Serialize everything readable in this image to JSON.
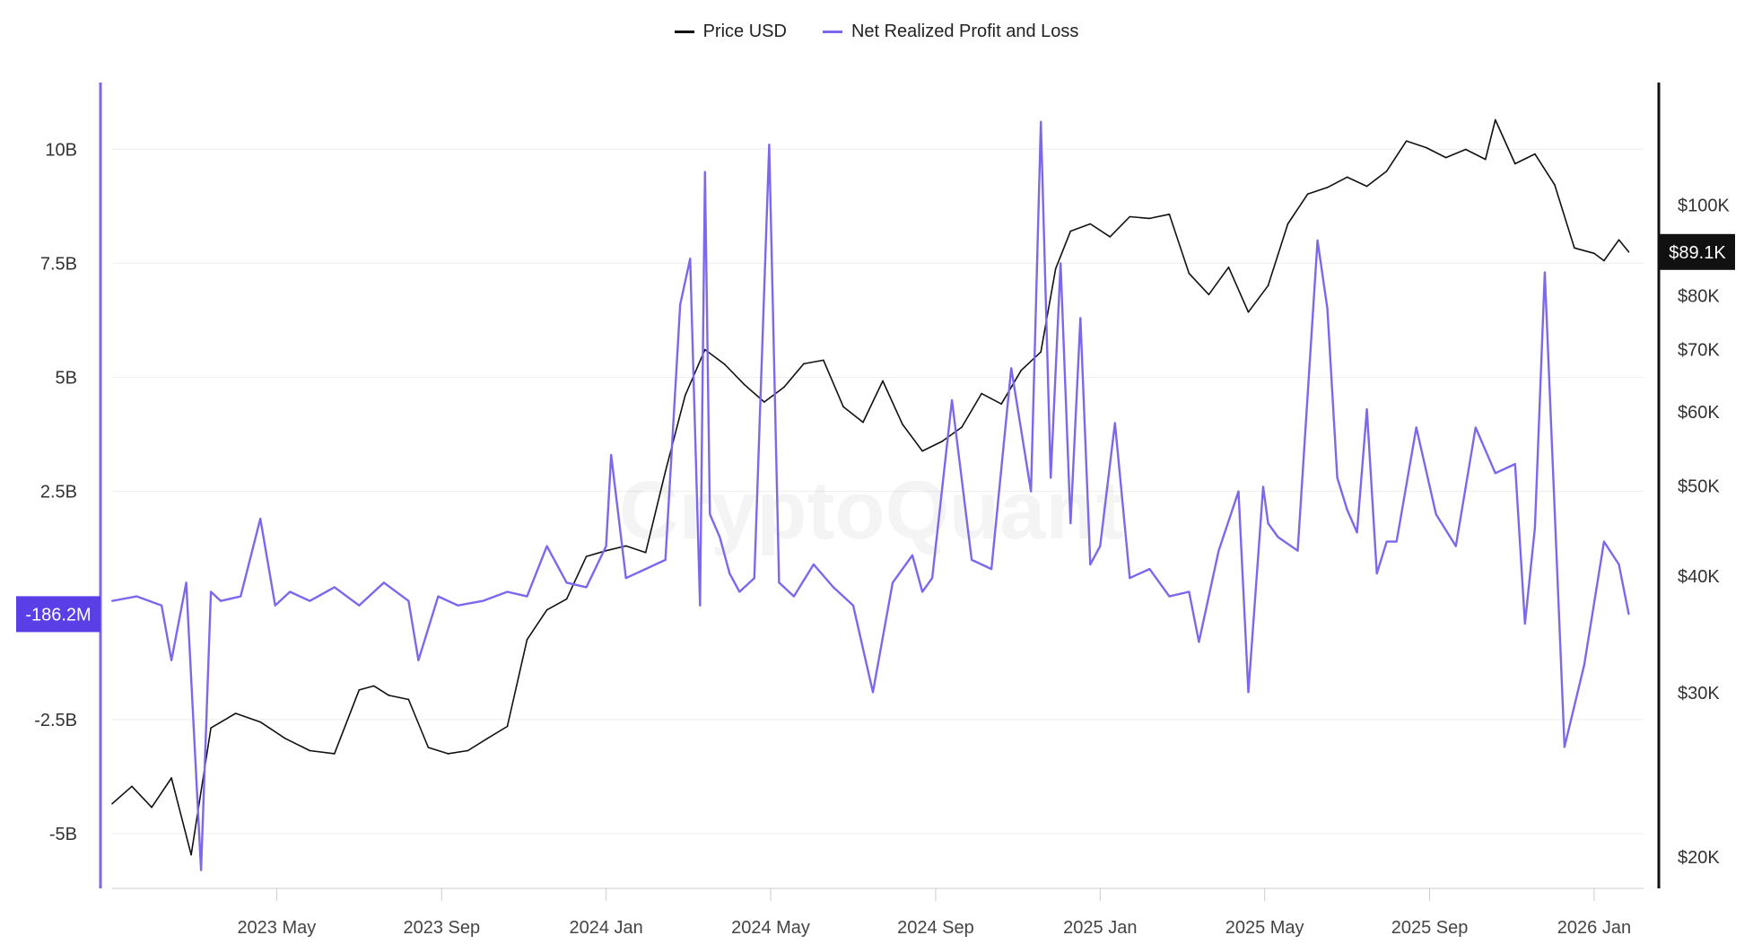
{
  "legend": {
    "price_label": "Price USD",
    "nrpl_label": "Net Realized Profit and Loss"
  },
  "watermark": "CryptoQuant",
  "colors": {
    "price": "#111111",
    "nrpl": "#7B68EE",
    "grid": "#eeeeee",
    "price_badge_bg": "#111111",
    "nrpl_badge_bg": "#5B3FE6"
  },
  "chart_data": {
    "type": "line",
    "title": "",
    "x_range": [
      2023.0,
      2026.1
    ],
    "x_ticks": [
      {
        "x": 2023.333,
        "label": "2023 May"
      },
      {
        "x": 2023.667,
        "label": "2023 Sep"
      },
      {
        "x": 2024.0,
        "label": "2024 Jan"
      },
      {
        "x": 2024.333,
        "label": "2024 May"
      },
      {
        "x": 2024.667,
        "label": "2024 Sep"
      },
      {
        "x": 2025.0,
        "label": "2025 Jan"
      },
      {
        "x": 2025.333,
        "label": "2025 May"
      },
      {
        "x": 2025.667,
        "label": "2025 Sep"
      },
      {
        "x": 2026.0,
        "label": "2026 Jan"
      }
    ],
    "left_axis": {
      "unit": "USD",
      "ylim": [
        -6.2,
        11.5
      ],
      "ticks": [
        {
          "value": 10,
          "label": "10B"
        },
        {
          "value": 7.5,
          "label": "7.5B"
        },
        {
          "value": 5,
          "label": "5B"
        },
        {
          "value": 2.5,
          "label": "2.5B"
        },
        {
          "value": -2.5,
          "label": "-2.5B"
        },
        {
          "value": -5,
          "label": "-5B"
        }
      ],
      "current_value_label": "-186.2M"
    },
    "right_axis": {
      "scale": "log",
      "ylim": [
        18500,
        136000
      ],
      "ticks": [
        {
          "value": 100000,
          "label": "$100K"
        },
        {
          "value": 80000,
          "label": "$80K"
        },
        {
          "value": 70000,
          "label": "$70K"
        },
        {
          "value": 60000,
          "label": "$60K"
        },
        {
          "value": 50000,
          "label": "$50K"
        },
        {
          "value": 40000,
          "label": "$40K"
        },
        {
          "value": 30000,
          "label": "$30K"
        },
        {
          "value": 20000,
          "label": "$20K"
        }
      ],
      "current_value_label": "$89.1K",
      "current_value": 89100
    },
    "series": [
      {
        "name": "Price USD",
        "axis": "right",
        "x": [
          2023.0,
          2023.04,
          2023.08,
          2023.12,
          2023.16,
          2023.2,
          2023.25,
          2023.3,
          2023.35,
          2023.4,
          2023.45,
          2023.5,
          2023.53,
          2023.56,
          2023.6,
          2023.64,
          2023.68,
          2023.72,
          2023.76,
          2023.8,
          2023.84,
          2023.88,
          2023.92,
          2023.96,
          2024.0,
          2024.04,
          2024.08,
          2024.12,
          2024.16,
          2024.2,
          2024.24,
          2024.28,
          2024.32,
          2024.36,
          2024.4,
          2024.44,
          2024.48,
          2024.52,
          2024.56,
          2024.6,
          2024.64,
          2024.68,
          2024.72,
          2024.76,
          2024.8,
          2024.84,
          2024.88,
          2024.91,
          2024.94,
          2024.98,
          2025.02,
          2025.06,
          2025.1,
          2025.14,
          2025.18,
          2025.22,
          2025.26,
          2025.3,
          2025.34,
          2025.38,
          2025.42,
          2025.46,
          2025.5,
          2025.54,
          2025.58,
          2025.62,
          2025.66,
          2025.7,
          2025.74,
          2025.78,
          2025.8,
          2025.84,
          2025.88,
          2025.92,
          2025.96,
          2026.0,
          2026.02,
          2026.05,
          2026.07
        ],
        "y": [
          22800,
          23800,
          22600,
          24300,
          20100,
          27500,
          28500,
          27900,
          26800,
          26000,
          25800,
          30200,
          30500,
          29800,
          29500,
          26200,
          25800,
          26000,
          26800,
          27600,
          34200,
          36800,
          37800,
          42000,
          42600,
          43100,
          42400,
          51800,
          62500,
          70000,
          67500,
          64200,
          61500,
          63800,
          67600,
          68200,
          60800,
          58500,
          64800,
          58200,
          54500,
          55800,
          57800,
          62800,
          61200,
          66500,
          69600,
          85500,
          93800,
          95500,
          92500,
          97200,
          96800,
          97800,
          84500,
          80200,
          85800,
          76800,
          82000,
          95500,
          102800,
          104500,
          107200,
          104800,
          108800,
          117200,
          115300,
          112500,
          114800,
          112000,
          123500,
          110800,
          113500,
          105200,
          90000,
          88800,
          87200,
          91800,
          89100
        ]
      },
      {
        "name": "Net Realized Profit and Loss",
        "axis": "left",
        "unit": "billion USD",
        "x": [
          2023.0,
          2023.05,
          2023.1,
          2023.12,
          2023.15,
          2023.18,
          2023.2,
          2023.22,
          2023.26,
          2023.3,
          2023.33,
          2023.36,
          2023.4,
          2023.45,
          2023.5,
          2023.55,
          2023.6,
          2023.62,
          2023.66,
          2023.7,
          2023.75,
          2023.8,
          2023.84,
          2023.88,
          2023.92,
          2023.96,
          2024.0,
          2024.01,
          2024.04,
          2024.08,
          2024.12,
          2024.15,
          2024.17,
          2024.19,
          2024.2,
          2024.21,
          2024.23,
          2024.25,
          2024.27,
          2024.3,
          2024.33,
          2024.35,
          2024.38,
          2024.42,
          2024.46,
          2024.5,
          2024.54,
          2024.58,
          2024.62,
          2024.64,
          2024.66,
          2024.7,
          2024.74,
          2024.78,
          2024.82,
          2024.86,
          2024.88,
          2024.9,
          2024.92,
          2024.94,
          2024.96,
          2024.98,
          2025.0,
          2025.03,
          2025.06,
          2025.1,
          2025.14,
          2025.18,
          2025.2,
          2025.24,
          2025.28,
          2025.3,
          2025.33,
          2025.34,
          2025.36,
          2025.4,
          2025.44,
          2025.46,
          2025.48,
          2025.5,
          2025.52,
          2025.54,
          2025.56,
          2025.58,
          2025.6,
          2025.64,
          2025.68,
          2025.72,
          2025.76,
          2025.8,
          2025.84,
          2025.86,
          2025.88,
          2025.9,
          2025.94,
          2025.98,
          2026.02,
          2026.05,
          2026.07
        ],
        "y": [
          0.1,
          0.2,
          0.0,
          -1.2,
          0.5,
          -5.8,
          0.3,
          0.1,
          0.2,
          1.9,
          0.0,
          0.3,
          0.1,
          0.4,
          0.0,
          0.5,
          0.1,
          -1.2,
          0.2,
          0.0,
          0.1,
          0.3,
          0.2,
          1.3,
          0.5,
          0.4,
          1.3,
          3.3,
          0.6,
          0.8,
          1.0,
          6.6,
          7.6,
          0.0,
          9.5,
          2.0,
          1.5,
          0.7,
          0.3,
          0.6,
          10.1,
          0.5,
          0.2,
          0.9,
          0.4,
          0.0,
          -1.9,
          0.5,
          1.1,
          0.3,
          0.6,
          4.5,
          1.0,
          0.8,
          5.2,
          2.5,
          10.6,
          2.8,
          7.5,
          1.8,
          6.3,
          0.9,
          1.3,
          4.0,
          0.6,
          0.8,
          0.2,
          0.3,
          -0.8,
          1.2,
          2.5,
          -1.9,
          2.6,
          1.8,
          1.5,
          1.2,
          8.0,
          6.5,
          2.8,
          2.1,
          1.6,
          4.3,
          0.7,
          1.4,
          1.4,
          3.9,
          2.0,
          1.3,
          3.9,
          2.9,
          3.1,
          -0.4,
          1.7,
          7.3,
          -3.1,
          -1.3,
          1.4,
          0.9,
          -0.19
        ]
      }
    ]
  }
}
